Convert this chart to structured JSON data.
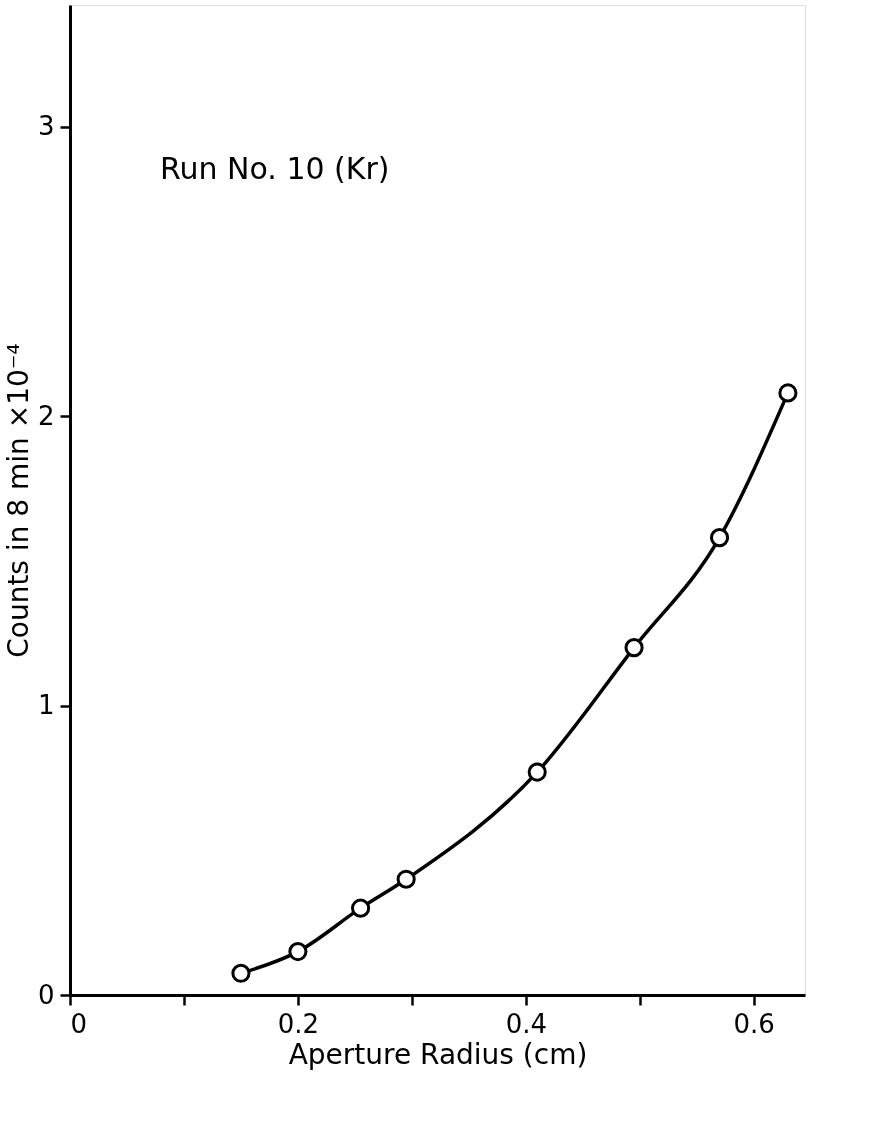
{
  "chart_data": {
    "type": "line",
    "xlabel": "Aperture Radius (cm)",
    "ylabel": "Counts in 8 min ×10⁻⁴",
    "annotations": [
      "Run No. 10 (Kr)"
    ],
    "series": [
      {
        "color": "#000000",
        "x": [
          0.15,
          0.2,
          0.255,
          0.295,
          0.41,
          0.495,
          0.57,
          0.63
        ],
        "values": [
          0.075,
          0.15,
          0.3,
          0.4,
          0.77,
          1.2,
          1.58,
          2.08
        ]
      },
      {
        "type": "scatter",
        "color": "#000000",
        "x": [
          0.15,
          0.2,
          0.255,
          0.295,
          0.41,
          0.495,
          0.57,
          0.63
        ],
        "values": [
          0.075,
          0.15,
          0.3,
          0.4,
          0.77,
          1.2,
          1.58,
          2.08
        ],
        "marker": "circle"
      }
    ],
    "xlim": [
      0,
      0.645
    ],
    "ylim": [
      0,
      3.42
    ],
    "xticks": [
      0,
      {
        "value": 0.1,
        "label": null
      },
      0.2,
      {
        "value": 0.3,
        "label": null
      },
      0.4,
      {
        "value": 0.5,
        "label": null
      },
      0.6
    ],
    "yticks": [
      0,
      1,
      2,
      3
    ],
    "grid": false
  }
}
